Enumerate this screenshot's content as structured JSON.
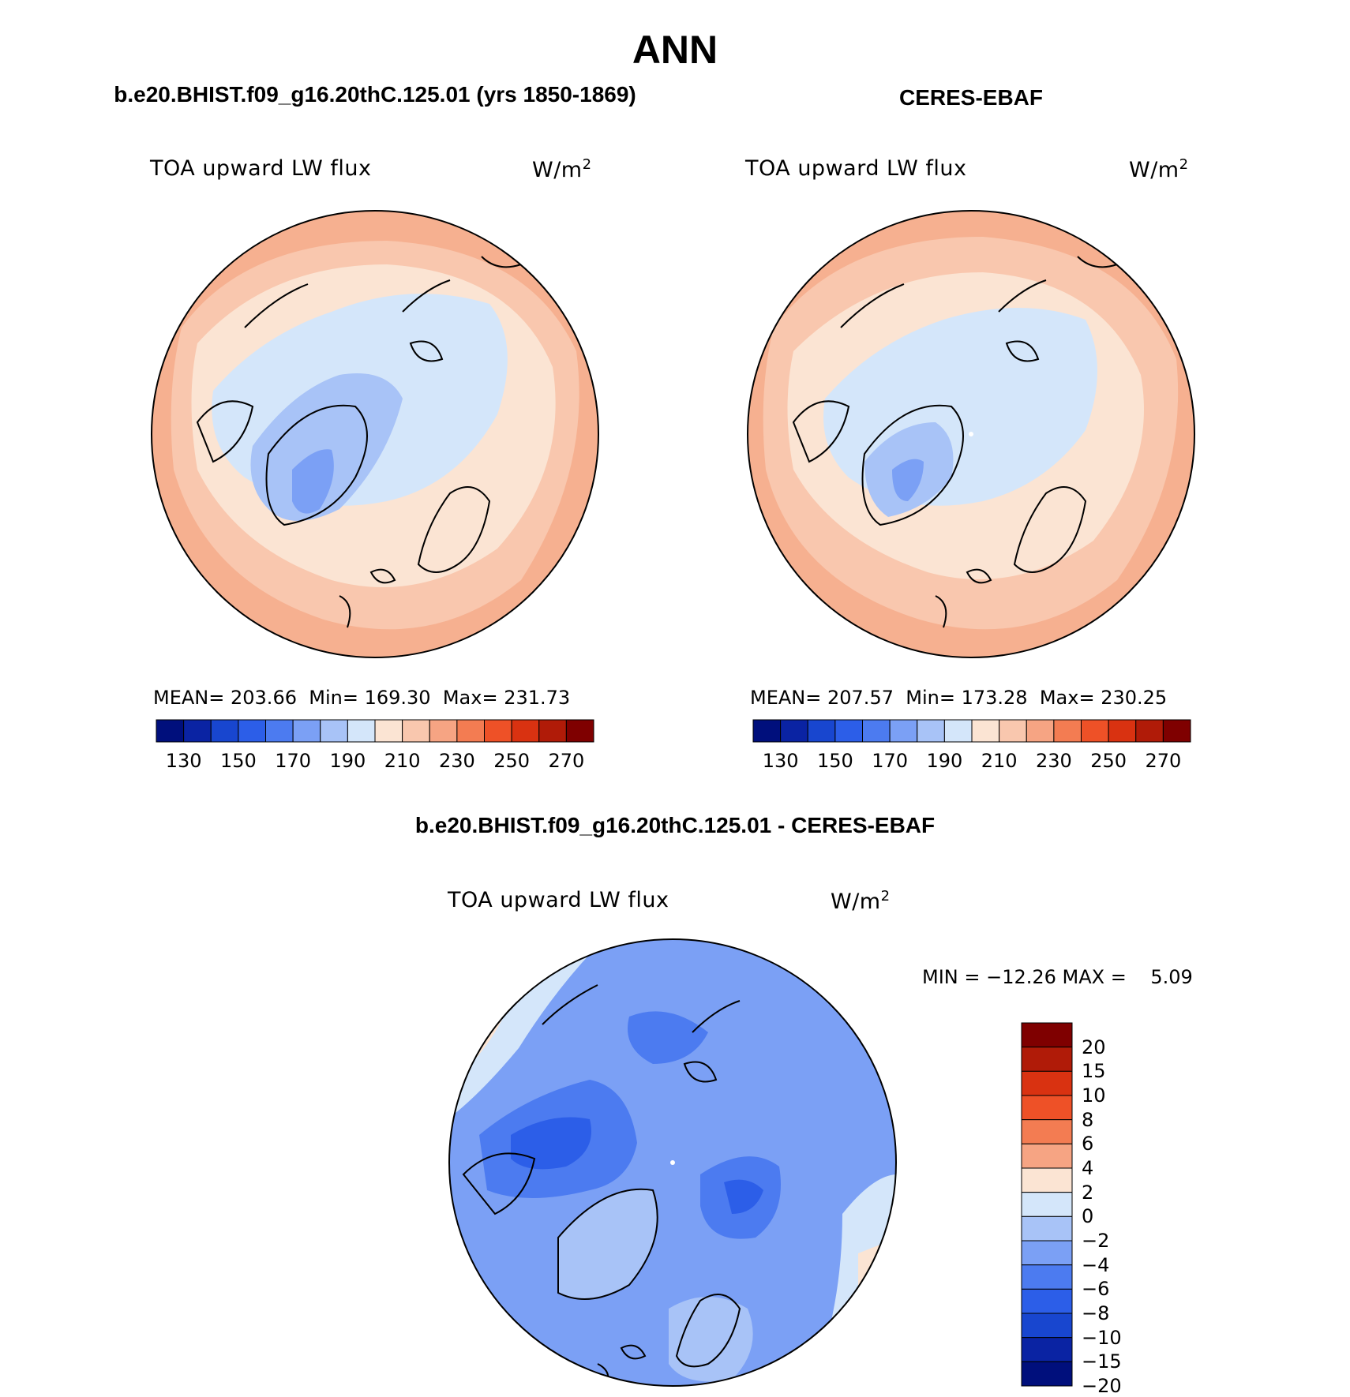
{
  "page_title": "ANN",
  "panels": [
    {
      "case_title": "b.e20.BHIST.f09_g16.20thC.125.01 (yrs 1850-1869)",
      "variable": "TOA upward LW flux",
      "units": "W/m",
      "units_exp": "2",
      "stats": {
        "mean": "203.66",
        "min": "169.30",
        "max": "231.73"
      },
      "stats_labels": {
        "mean": "MEAN=",
        "min": "Min=",
        "max": "Max="
      }
    },
    {
      "case_title": "CERES-EBAF",
      "variable": "TOA upward LW flux",
      "units": "W/m",
      "units_exp": "2",
      "stats": {
        "mean": "207.57",
        "min": "173.28",
        "max": "230.25"
      },
      "stats_labels": {
        "mean": "MEAN=",
        "min": "Min=",
        "max": "Max="
      }
    },
    {
      "case_title": "b.e20.BHIST.f09_g16.20thC.125.01 - CERES-EBAF",
      "variable": "TOA upward LW flux",
      "units": "W/m",
      "units_exp": "2",
      "minmax_text": "MIN = −12.26 MAX =    5.09"
    }
  ],
  "colorbar_abs": {
    "tick_labels": [
      "130",
      "150",
      "170",
      "190",
      "210",
      "230",
      "250",
      "270"
    ],
    "colors": [
      "#000f7c",
      "#0a23a3",
      "#1846cf",
      "#2c5ee8",
      "#4c7bf0",
      "#7ba0f5",
      "#a8c3f7",
      "#d4e6fa",
      "#fbe4d3",
      "#f9c7ae",
      "#f6a483",
      "#f37c52",
      "#ee5127",
      "#d93211",
      "#b01b08",
      "#7f0000"
    ]
  },
  "colorbar_diff": {
    "tick_labels": [
      "20",
      "15",
      "10",
      "8",
      "6",
      "4",
      "2",
      "0",
      "−2",
      "−4",
      "−6",
      "−8",
      "−10",
      "−15",
      "−20"
    ],
    "colors": [
      "#7f0000",
      "#b01b08",
      "#d93211",
      "#ee5127",
      "#f37c52",
      "#f6a483",
      "#fbe4d3",
      "#d4e6fa",
      "#a8c3f7",
      "#7ba0f5",
      "#4c7bf0",
      "#2c5ee8",
      "#1846cf",
      "#0a23a3",
      "#000f7c"
    ]
  },
  "map_colors": {
    "outer": "#f6b090",
    "warm": "#f9c7ae",
    "neutral": "#fbe4d3",
    "cool": "#d4e6fa",
    "cold": "#a8c3f7",
    "colder": "#7ba0f5",
    "diff_base": "#7ba0f5",
    "diff_light": "#a8c3f7",
    "diff_dark": "#4c7bf0",
    "diff_darker": "#2c5ee8",
    "diff_pale": "#d4e6fa",
    "diff_warm": "#fbe4d3",
    "coast": "#000000"
  }
}
